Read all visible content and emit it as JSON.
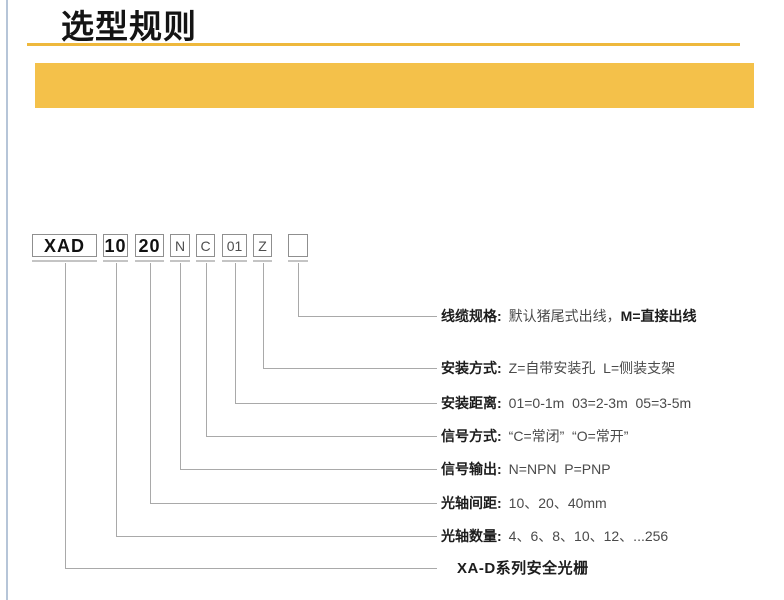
{
  "page": {
    "title": "选型规则"
  },
  "colors": {
    "accent_band": "#f4c14a",
    "accent_line": "#eeb83c",
    "left_border": "#b6c5d8",
    "connector": "#a9a9a9",
    "box_underline": "#c4c4c4"
  },
  "model_code": {
    "boxes": [
      {
        "text": "XAD",
        "bold": true
      },
      {
        "text": "10",
        "bold": true
      },
      {
        "text": "20",
        "bold": true
      },
      {
        "text": "N",
        "bold": false
      },
      {
        "text": "C",
        "bold": false
      },
      {
        "text": "01",
        "bold": false
      },
      {
        "text": "Z",
        "bold": false
      },
      {
        "text": "",
        "bold": false
      }
    ]
  },
  "legend": {
    "rows": [
      {
        "name": "cable-spec",
        "label": "线缆规格:",
        "value": "默认猪尾式出线，",
        "value_bold": "M=直接出线"
      },
      {
        "name": "mounting-type",
        "label": "安装方式:",
        "value": "Z=自带安装孔  L=侧装支架",
        "value_bold": ""
      },
      {
        "name": "mounting-range",
        "label": "安装距离:",
        "value": "01=0-1m  03=2-3m  05=3-5m",
        "value_bold": ""
      },
      {
        "name": "signal-mode",
        "label": "信号方式:",
        "value": "“C=常闭”  “O=常开”",
        "value_bold": ""
      },
      {
        "name": "signal-output",
        "label": "信号输出:",
        "value": "N=NPN  P=PNP",
        "value_bold": ""
      },
      {
        "name": "beam-pitch",
        "label": "光轴间距:",
        "value": "10、20、40mm",
        "value_bold": ""
      },
      {
        "name": "beam-count",
        "label": "光轴数量:",
        "value": "4、6、8、10、12、...256",
        "value_bold": ""
      },
      {
        "name": "series-name",
        "label": "XA-D系列安全光栅",
        "value": "",
        "value_bold": ""
      }
    ]
  }
}
